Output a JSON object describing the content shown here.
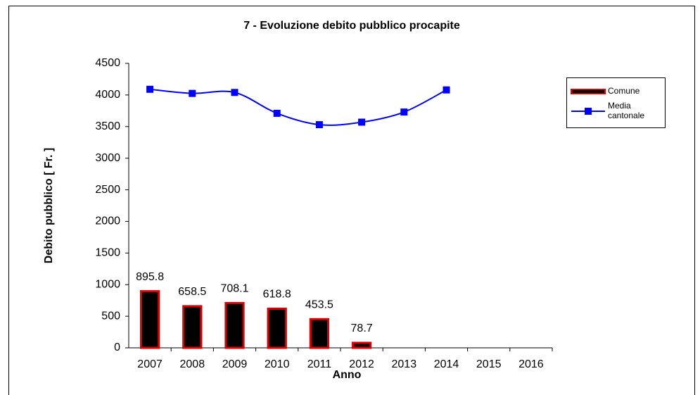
{
  "chart_data": {
    "type": "bar_line",
    "title": "7 - Evoluzione debito pubblico procapite",
    "x_label": "Anno",
    "y_label": "Debito pubblico [ Fr. ]",
    "categories": [
      "2007",
      "2008",
      "2009",
      "2010",
      "2011",
      "2012",
      "2013",
      "2014",
      "2015",
      "2016"
    ],
    "series": [
      {
        "name": "Comune",
        "type": "bar",
        "color": "#000000",
        "edge_color": "#e00000",
        "values": [
          895.8,
          658.5,
          708.1,
          618.8,
          453.5,
          78.7,
          0,
          0,
          0,
          0
        ],
        "value_labels": [
          "895.8",
          "658.5",
          "708.1",
          "618.8",
          "453.5",
          "78.7",
          null,
          null,
          null,
          null
        ]
      },
      {
        "name": "Media cantonale",
        "type": "line",
        "color": "#0000ff",
        "values": [
          4090,
          4025,
          4040,
          3710,
          3530,
          3570,
          3730,
          4080,
          null,
          null
        ]
      }
    ],
    "ylim": [
      0,
      4500
    ],
    "yticks": [
      0,
      500,
      1000,
      1500,
      2000,
      2500,
      3000,
      3500,
      4000,
      4500
    ],
    "legend": "right"
  }
}
